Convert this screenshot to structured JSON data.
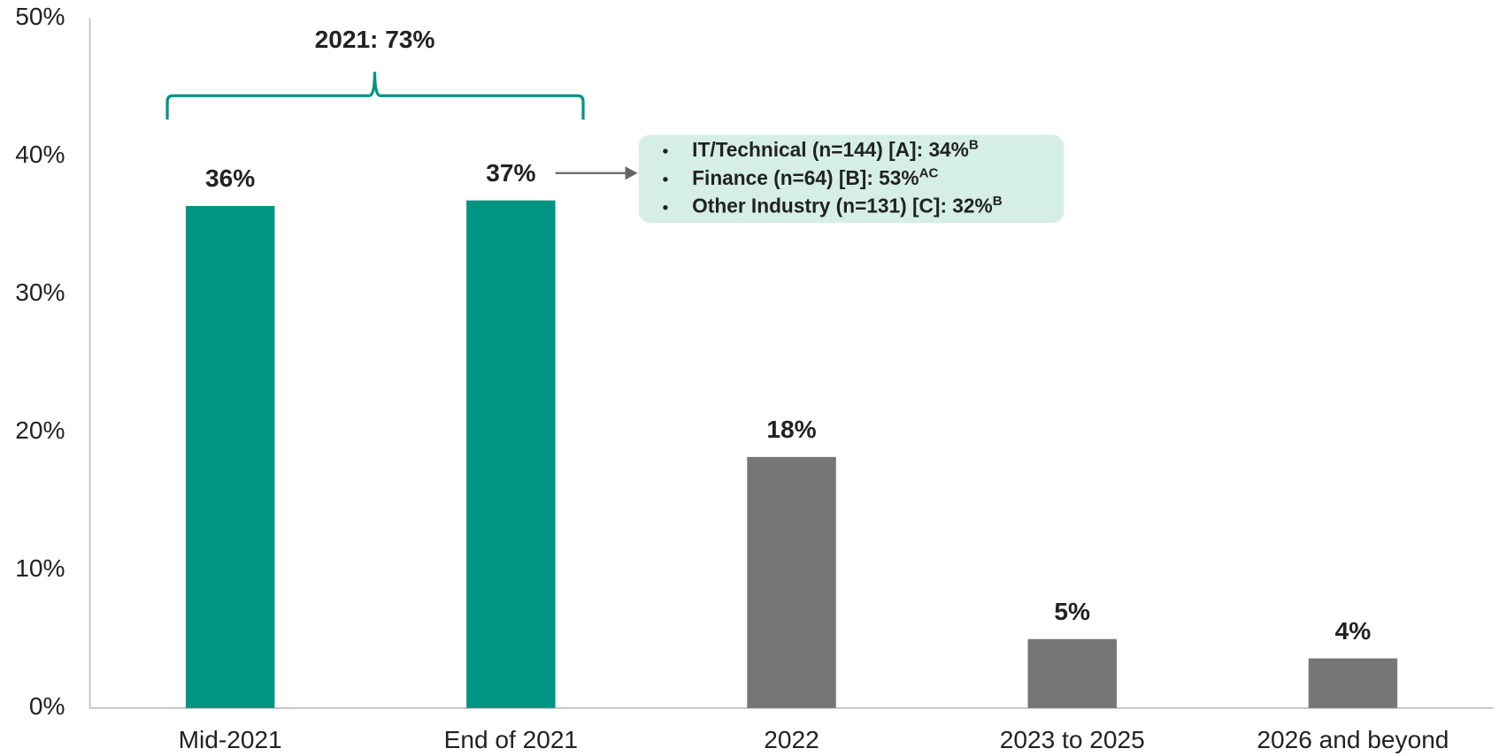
{
  "chart_data": {
    "type": "bar",
    "categories": [
      "Mid-2021",
      "End of 2021",
      "2022",
      "2023 to 2025",
      "2026 and beyond"
    ],
    "values": [
      36.4,
      36.8,
      18.2,
      5,
      3.6
    ],
    "value_labels": [
      "36%",
      "37%",
      "18%",
      "5%",
      "4%"
    ],
    "colors": [
      "#009482",
      "#009482",
      "#767676",
      "#767676",
      "#767676"
    ],
    "ylim": [
      0,
      50
    ],
    "yticks": [
      {
        "value": 0,
        "label": "0%"
      },
      {
        "value": 10,
        "label": "10%"
      },
      {
        "value": 20,
        "label": "20%"
      },
      {
        "value": 30,
        "label": "30%"
      },
      {
        "value": 40,
        "label": "40%"
      },
      {
        "value": 50,
        "label": "50%"
      }
    ],
    "bracket_label": "2021: 73%",
    "callout": [
      {
        "text": "IT/Technical (n=144) [A]: 34%",
        "sup": "B"
      },
      {
        "text": "Finance (n=64) [B]: 53%",
        "sup": "AC"
      },
      {
        "text": "Other Industry (n=131) [C]: 32%",
        "sup": "B"
      }
    ]
  }
}
